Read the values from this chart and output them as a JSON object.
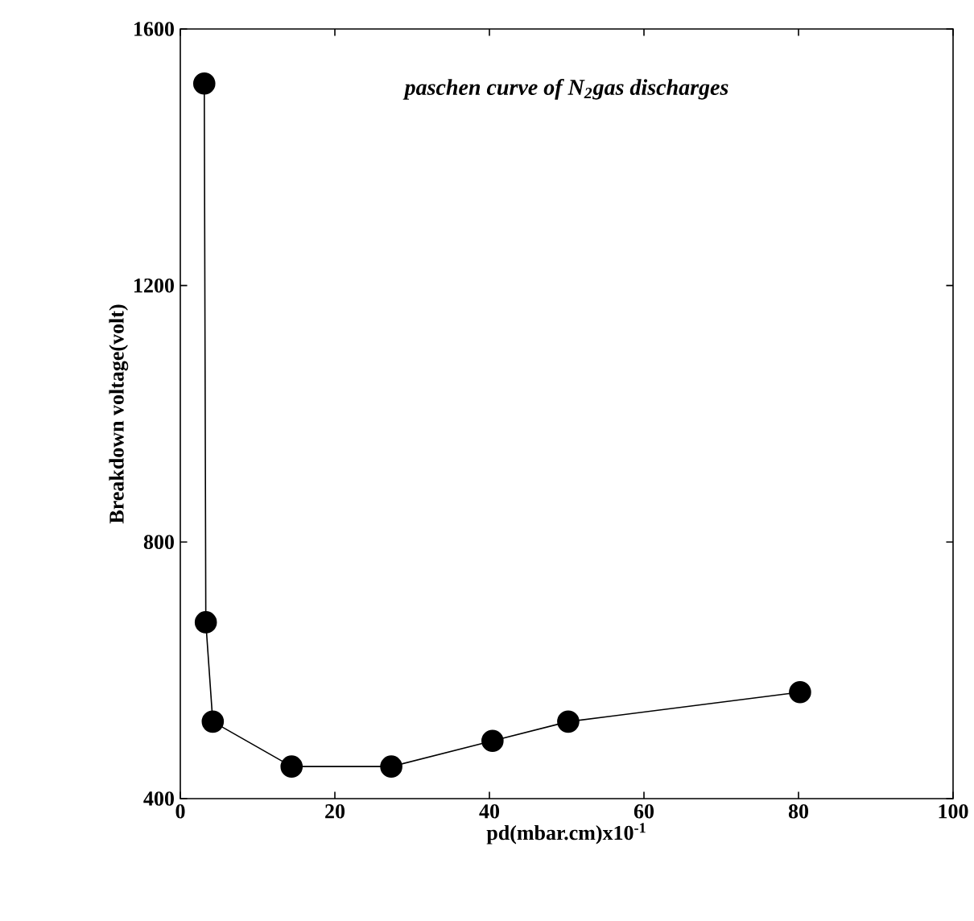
{
  "chart_data": {
    "type": "line",
    "title": "*paschen curve of N$_{2}$gas discharges*",
    "xlabel": "pd(mbar.cm)x10$^{-1}$",
    "ylabel": "Breakdown voltage(volt)",
    "x": [
      3.1,
      3.3,
      4.2,
      14.4,
      27.3,
      40.4,
      50.2,
      80.2
    ],
    "series": [
      {
        "color": "#000000",
        "values": [
          1515,
          675,
          520,
          450,
          450,
          490,
          520,
          566
        ]
      }
    ],
    "xlim": [
      0,
      100
    ],
    "ylim": [
      400,
      1600
    ],
    "xticks": [
      0,
      20,
      40,
      60,
      80,
      100
    ],
    "yticks": [
      400,
      800,
      1200,
      1600
    ],
    "marker": "circle",
    "line_style": "solid"
  }
}
